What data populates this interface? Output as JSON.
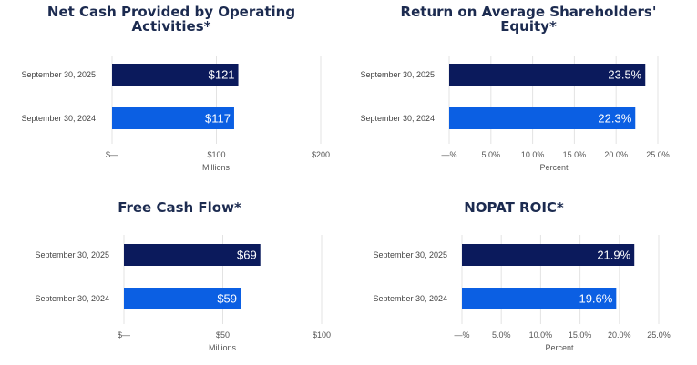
{
  "colors": {
    "current": "#0b1a5c",
    "prior": "#0b5fe3",
    "title": "#1c2b50",
    "grid": "#e3e3e3"
  },
  "chart_data": [
    {
      "type": "bar",
      "orientation": "horizontal",
      "title_lines": [
        "Net Cash Provided by Operating",
        "Activities*"
      ],
      "categories": [
        "September 30, 2025",
        "September 30, 2024"
      ],
      "values": [
        121,
        117
      ],
      "data_labels": [
        "$121",
        "$117"
      ],
      "xlabel": "Millions",
      "xlim": [
        0,
        200
      ],
      "ticks": [
        0,
        100,
        200
      ],
      "tick_labels": [
        "$—",
        "$100",
        "$200"
      ],
      "grid": true
    },
    {
      "type": "bar",
      "orientation": "horizontal",
      "title_lines": [
        "Return on Average Shareholders'",
        "Equity*"
      ],
      "categories": [
        "September 30, 2025",
        "September 30, 2024"
      ],
      "values": [
        23.5,
        22.3
      ],
      "data_labels": [
        "23.5%",
        "22.3%"
      ],
      "xlabel": "Percent",
      "xlim": [
        0,
        25
      ],
      "ticks": [
        0,
        5,
        10,
        15,
        20,
        25
      ],
      "tick_labels": [
        "—%",
        "5.0%",
        "10.0%",
        "15.0%",
        "20.0%",
        "25.0%"
      ],
      "grid": true
    },
    {
      "type": "bar",
      "orientation": "horizontal",
      "title_lines": [
        "Free Cash Flow*"
      ],
      "categories": [
        "September 30, 2025",
        "September 30, 2024"
      ],
      "values": [
        69,
        59
      ],
      "data_labels": [
        "$69",
        "$59"
      ],
      "xlabel": "Millions",
      "xlim": [
        0,
        100
      ],
      "ticks": [
        0,
        50,
        100
      ],
      "tick_labels": [
        "$—",
        "$50",
        "$100"
      ],
      "grid": true
    },
    {
      "type": "bar",
      "orientation": "horizontal",
      "title_lines": [
        "NOPAT ROIC*"
      ],
      "categories": [
        "September 30, 2025",
        "September 30, 2024"
      ],
      "values": [
        21.9,
        19.6
      ],
      "data_labels": [
        "21.9%",
        "19.6%"
      ],
      "xlabel": "Percent",
      "xlim": [
        0,
        25
      ],
      "ticks": [
        0,
        5,
        10,
        15,
        20,
        25
      ],
      "tick_labels": [
        "—%",
        "5.0%",
        "10.0%",
        "15.0%",
        "20.0%",
        "25.0%"
      ],
      "grid": true
    }
  ]
}
